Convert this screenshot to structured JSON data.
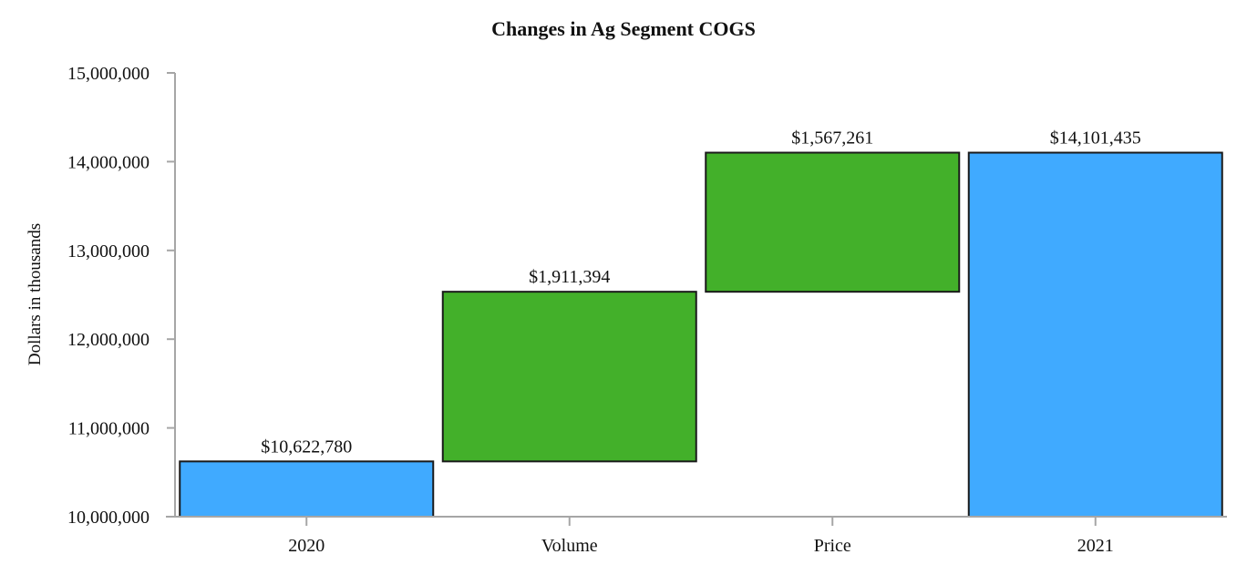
{
  "chart_data": {
    "type": "bar",
    "subtype": "waterfall",
    "title": "Changes in Ag Segment COGS",
    "xlabel": "",
    "ylabel": "Dollars in thousands",
    "ylim": [
      10000000,
      15000000
    ],
    "yticks": [
      10000000,
      11000000,
      12000000,
      13000000,
      14000000,
      15000000
    ],
    "ytick_labels": [
      "10,000,000",
      "11,000,000",
      "12,000,000",
      "13,000,000",
      "14,000,000",
      "15,000,000"
    ],
    "categories": [
      "2020",
      "Volume",
      "Price",
      "2021"
    ],
    "values": [
      10622780,
      1911394,
      1567261,
      14101435
    ],
    "bars": [
      {
        "label": "2020",
        "kind": "total",
        "start": 10000000,
        "end": 10622780,
        "value_label": "$10,622,780",
        "color": "#40aaff"
      },
      {
        "label": "Volume",
        "kind": "increase",
        "start": 10622780,
        "end": 12534174,
        "value_label": "$1,911,394",
        "color": "#43b02a"
      },
      {
        "label": "Price",
        "kind": "increase",
        "start": 12534174,
        "end": 14101435,
        "value_label": "$1,567,261",
        "color": "#43b02a"
      },
      {
        "label": "2021",
        "kind": "total",
        "start": 10000000,
        "end": 14101435,
        "value_label": "$14,101,435",
        "color": "#40aaff"
      }
    ],
    "grid": false,
    "legend": null
  },
  "colors": {
    "total": "#40aaff",
    "increase": "#43b02a",
    "bar_border": "#1a1a1a",
    "axis": "#a6a6a6"
  }
}
